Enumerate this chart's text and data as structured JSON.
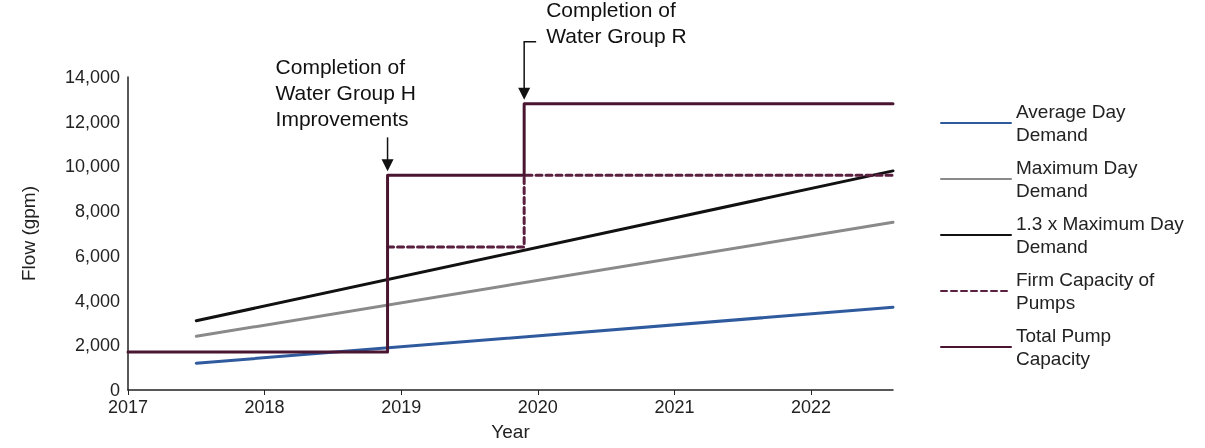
{
  "chart_data": {
    "type": "line",
    "xlabel": "Year",
    "ylabel": "Flow (gpm)",
    "xlim": [
      2017,
      2022.6
    ],
    "xticks": [
      2017,
      2018,
      2019,
      2020,
      2021,
      2022
    ],
    "ylim": [
      0,
      14000
    ],
    "yticks": [
      0,
      {
        "value": 2000,
        "label": "2,000"
      },
      {
        "value": 4000,
        "label": "4,000"
      },
      {
        "value": 6000,
        "label": "6,000"
      },
      {
        "value": 8000,
        "label": "8,000"
      },
      {
        "value": 10000,
        "label": "10,000"
      },
      {
        "value": 12000,
        "label": "12,000"
      },
      {
        "value": 14000,
        "label": "14,000"
      }
    ],
    "grid": false,
    "legend": "right",
    "marker": "none",
    "series": [
      {
        "name": "Average Day Demand",
        "color": "#2f5b9e",
        "line_style": "solid",
        "x": [
          2017.5,
          2022.6
        ],
        "values": [
          1200,
          3700
        ]
      },
      {
        "name": "Maximum Day Demand",
        "color": "#8a8a8a",
        "line_style": "solid",
        "x": [
          2017.5,
          2022.6
        ],
        "values": [
          2400,
          7500
        ]
      },
      {
        "name": "1.3 x Maximum Day Demand",
        "color": "#111111",
        "line_style": "solid",
        "x": [
          2017.5,
          2022.6
        ],
        "values": [
          3100,
          9800
        ]
      },
      {
        "name": "Firm Capacity of Pumps",
        "color": "#5a1f3f",
        "line_style": "dashed",
        "x": [
          2018.9,
          2019.9,
          2019.9,
          2022.6
        ],
        "values": [
          6400,
          6400,
          9600,
          9600
        ]
      },
      {
        "name": "Total Pump Capacity",
        "color": "#4a1530",
        "line_style": "solid",
        "x": [
          2017,
          2018.9,
          2018.9,
          2019.9,
          2019.9,
          2022.6
        ],
        "values": [
          1700,
          1700,
          9600,
          9600,
          12800,
          12800
        ]
      }
    ],
    "annotations": [
      {
        "text": "Completion of Water Group H Improvements",
        "x": 2018.9,
        "y": 9600
      },
      {
        "text": "Completion of Water Group R",
        "x": 2019.9,
        "y": 12800
      }
    ]
  }
}
